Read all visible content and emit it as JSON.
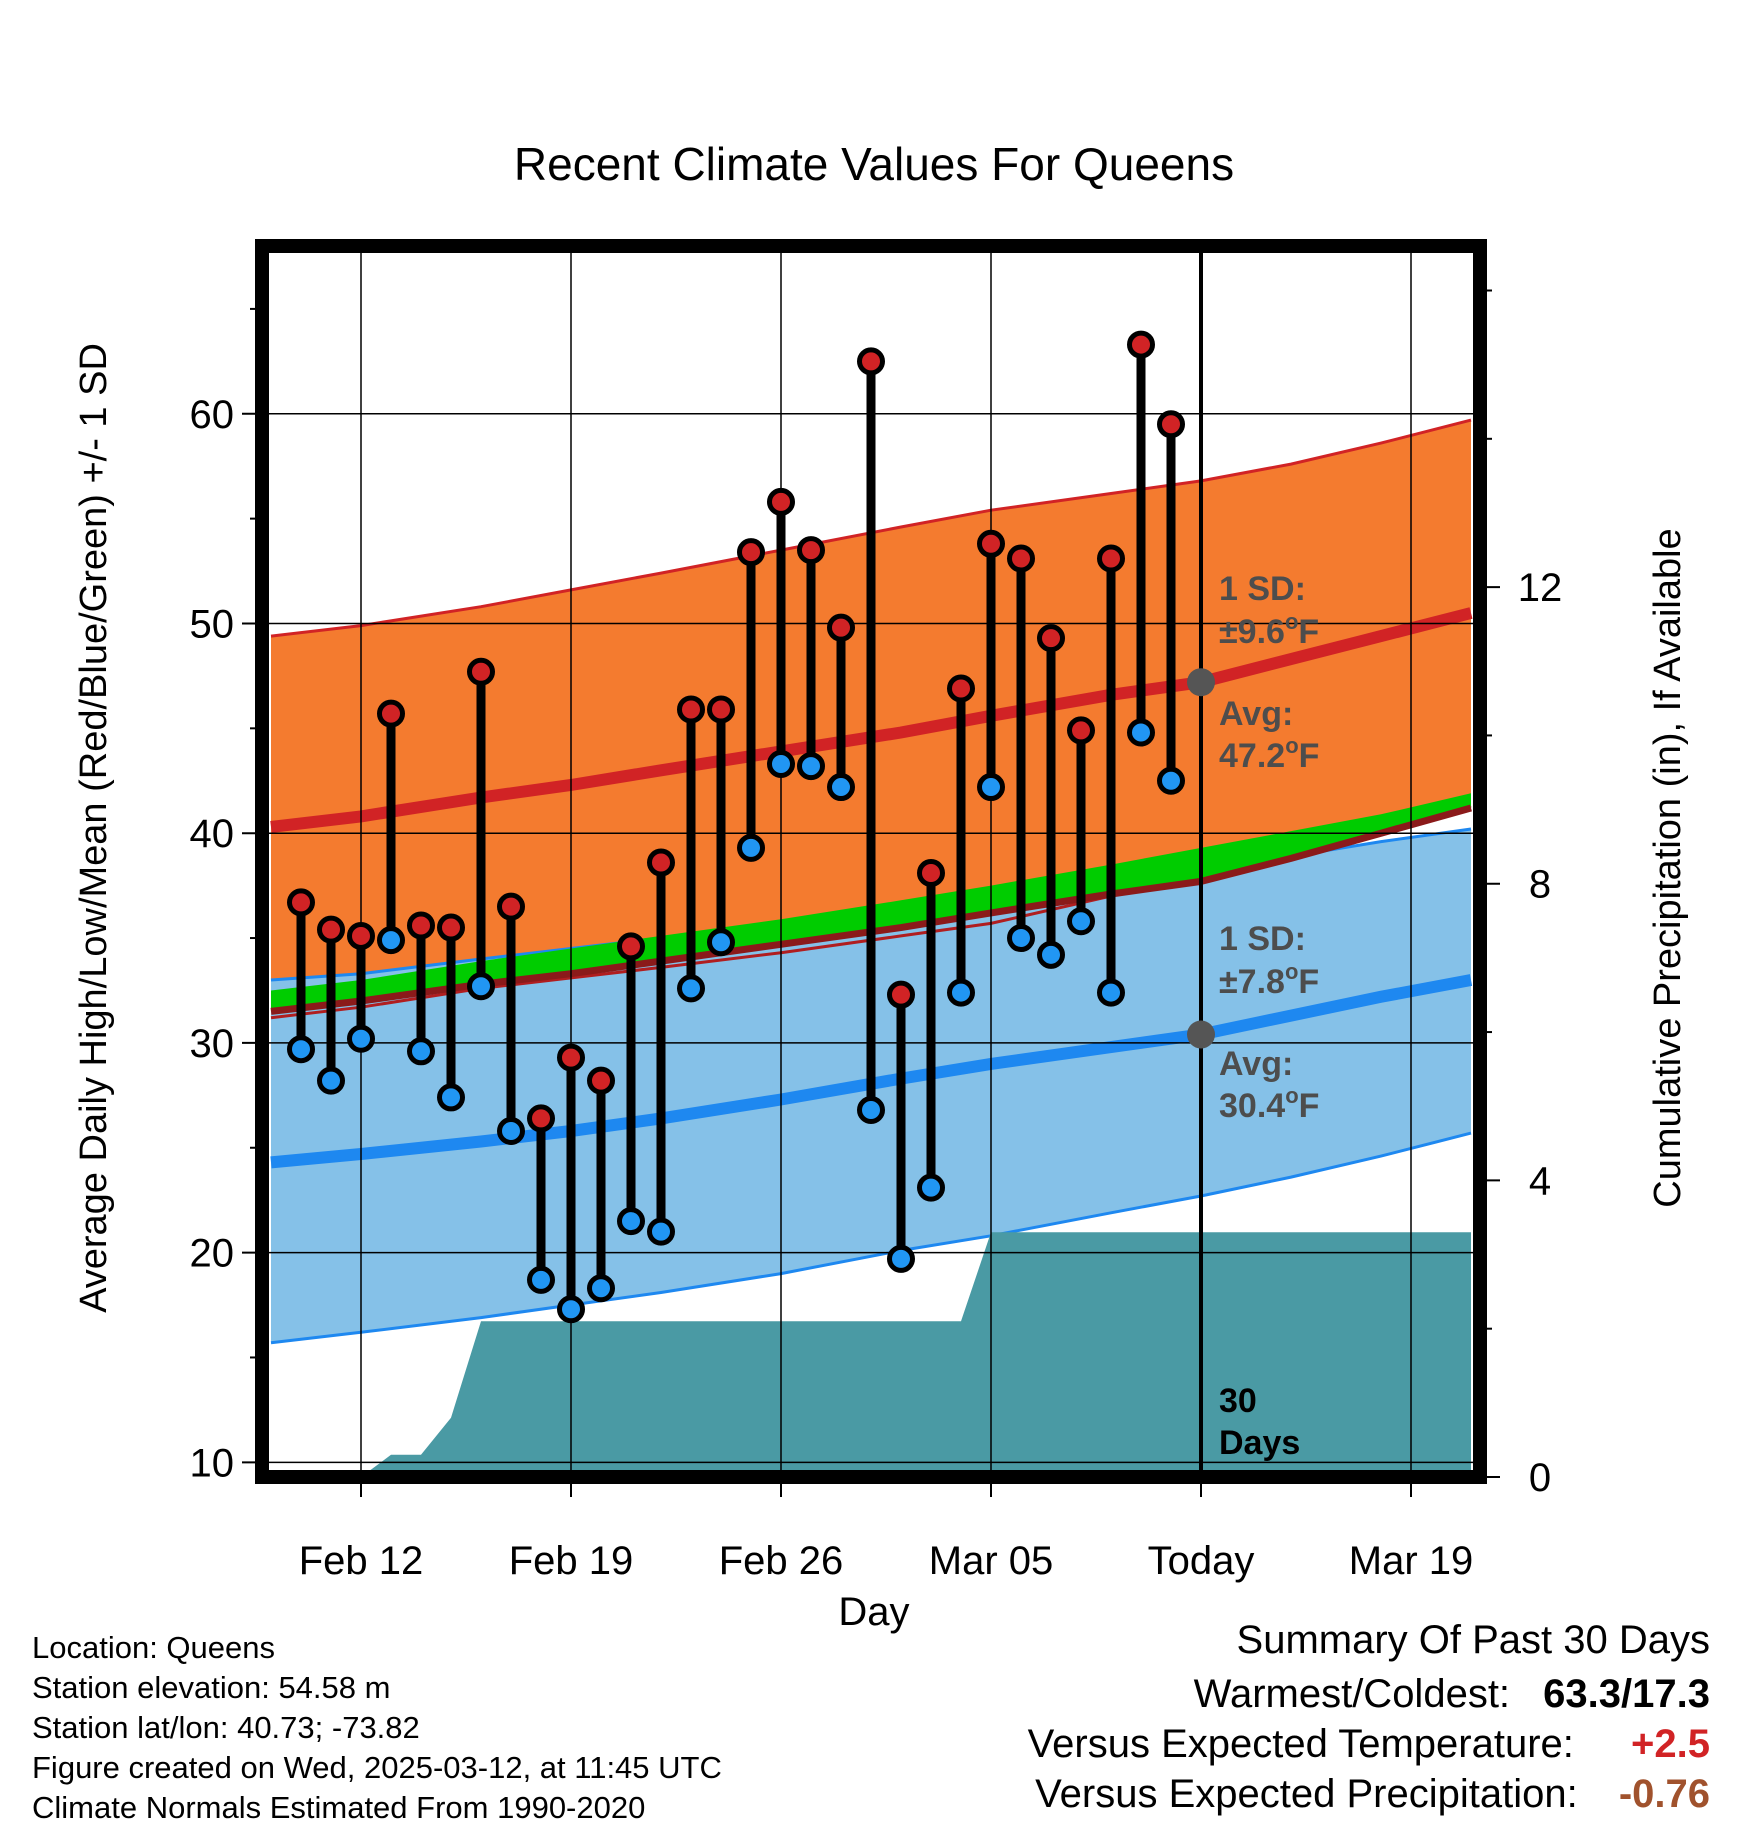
{
  "chart_data": {
    "type": "line",
    "title": "Recent Climate Values For Queens",
    "xlabel": "Day",
    "ylabel": "Average Daily High/Low/Mean (Red/Blue/Green) +/- 1 SD",
    "y2label": "Cumulative Precipitation (in), If Available",
    "ylim": [
      9.3,
      68
    ],
    "y2lim": [
      0,
      16.6
    ],
    "yticks": [
      "10",
      "20",
      "30",
      "40",
      "50",
      "60"
    ],
    "y2ticks": [
      "0",
      "4",
      "8",
      "12"
    ],
    "y2tickValues": [
      0,
      4,
      8,
      12
    ],
    "xlim": [
      -3.3,
      37.3
    ],
    "xticks": [
      {
        "day": 0,
        "label": "Feb 12"
      },
      {
        "day": 7,
        "label": "Feb 19"
      },
      {
        "day": 14,
        "label": "Feb 26"
      },
      {
        "day": 21,
        "label": "Mar 05"
      },
      {
        "day": 28,
        "label": "Today"
      },
      {
        "day": 35,
        "label": "Mar 19"
      }
    ],
    "grid": true,
    "today_day": 28,
    "normals": {
      "days": [
        -3,
        0,
        4,
        7,
        10,
        14,
        18,
        21,
        25,
        28,
        31,
        34,
        37
      ],
      "high_mean": [
        40.3,
        40.8,
        41.7,
        42.3,
        43.0,
        43.9,
        44.8,
        45.6,
        46.6,
        47.2,
        48.3,
        49.4,
        50.5
      ],
      "high_upper": [
        49.4,
        49.9,
        50.8,
        51.6,
        52.4,
        53.5,
        54.6,
        55.4,
        56.2,
        56.8,
        57.6,
        58.6,
        59.7
      ],
      "high_lower": [
        31.2,
        31.7,
        32.6,
        33.1,
        33.6,
        34.3,
        35.1,
        35.7,
        37.0,
        38.1,
        39.0,
        40.1,
        41.3
      ],
      "low_mean": [
        24.3,
        24.7,
        25.3,
        25.8,
        26.4,
        27.3,
        28.3,
        29.0,
        29.8,
        30.4,
        31.3,
        32.2,
        33.0
      ],
      "low_upper": [
        33.0,
        33.3,
        34.0,
        34.5,
        35.0,
        35.6,
        36.3,
        37.0,
        37.8,
        38.3,
        38.9,
        39.6,
        40.2
      ],
      "low_lower": [
        15.7,
        16.2,
        16.9,
        17.5,
        18.1,
        19.0,
        20.1,
        20.8,
        21.9,
        22.7,
        23.6,
        24.6,
        25.7
      ],
      "mean_upper": [
        32.5,
        33.0,
        33.9,
        34.5,
        35.1,
        35.9,
        36.8,
        37.5,
        38.5,
        39.3,
        40.1,
        40.9,
        41.9
      ],
      "mean_lower": [
        31.5,
        32.0,
        32.8,
        33.3,
        33.9,
        34.7,
        35.5,
        36.2,
        37.1,
        37.7,
        38.8,
        40.0,
        41.2
      ]
    },
    "daily": {
      "days": [
        -2,
        -1,
        0,
        1,
        2,
        3,
        4,
        5,
        6,
        7,
        8,
        9,
        10,
        11,
        12,
        13,
        14,
        15,
        16,
        17,
        18,
        19,
        20,
        21,
        22,
        23,
        24,
        25,
        26,
        27
      ],
      "high": [
        36.7,
        35.4,
        35.1,
        45.7,
        35.6,
        35.5,
        47.7,
        36.5,
        26.4,
        29.3,
        28.2,
        34.6,
        38.6,
        45.9,
        45.9,
        53.4,
        55.8,
        53.5,
        49.8,
        62.5,
        32.3,
        38.1,
        46.9,
        53.8,
        53.1,
        49.3,
        44.9,
        53.1,
        63.3,
        59.5
      ],
      "low": [
        29.7,
        28.2,
        30.2,
        34.9,
        29.6,
        27.4,
        32.7,
        25.8,
        18.7,
        17.3,
        18.3,
        21.5,
        21.0,
        32.6,
        34.8,
        39.3,
        43.3,
        43.2,
        42.2,
        26.8,
        19.7,
        23.1,
        32.4,
        42.2,
        35.0,
        34.2,
        35.8,
        32.4,
        44.8,
        42.5
      ]
    },
    "precip": {
      "days": [
        -3,
        0,
        1,
        2,
        3,
        4,
        20,
        21,
        22,
        37
      ],
      "values": [
        0,
        0,
        0.3,
        0.3,
        0.8,
        2.1,
        2.1,
        3.3,
        3.3,
        3.3
      ]
    },
    "annotations": {
      "high_sd_label": "1 SD:",
      "high_sd_value": "±9.6",
      "high_avg_label": "Avg:",
      "high_avg_value": "47.2",
      "low_sd_label": "1 SD:",
      "low_sd_value": "±7.8",
      "low_avg_label": "Avg:",
      "low_avg_value": "30.4",
      "deg_unit": "o",
      "unit_letter": "F",
      "days_count": "30",
      "days_word": "Days"
    },
    "colors": {
      "high_band": "#f47b2f",
      "high_line": "#d12325",
      "low_band": "#85c1e8",
      "low_line": "#1e88f0",
      "mean_band": "#00cc00",
      "precip": "#4a9aa4",
      "high_dot": "#d12325",
      "low_dot": "#2196f3",
      "avg_dot": "#555555",
      "annotation_text": "#4d4d4d"
    }
  },
  "info": {
    "location": "Location: Queens",
    "elevation": "Station elevation: 54.58 m",
    "latlon": "Station lat/lon: 40.73; -73.82",
    "created": "Figure created on Wed, 2025-03-12, at 11:45 UTC",
    "normals": "Climate Normals Estimated From 1990-2020"
  },
  "summary": {
    "title": "Summary Of Past 30 Days",
    "warm_cold_label": "Warmest/Coldest:",
    "warm_cold_value": "63.3/17.3",
    "temp_label": "Versus Expected Temperature:",
    "temp_value": "+2.5",
    "temp_color": "#d12325",
    "precip_label": "Versus Expected Precipitation:",
    "precip_value": "-0.76",
    "precip_color": "#a0522d"
  }
}
